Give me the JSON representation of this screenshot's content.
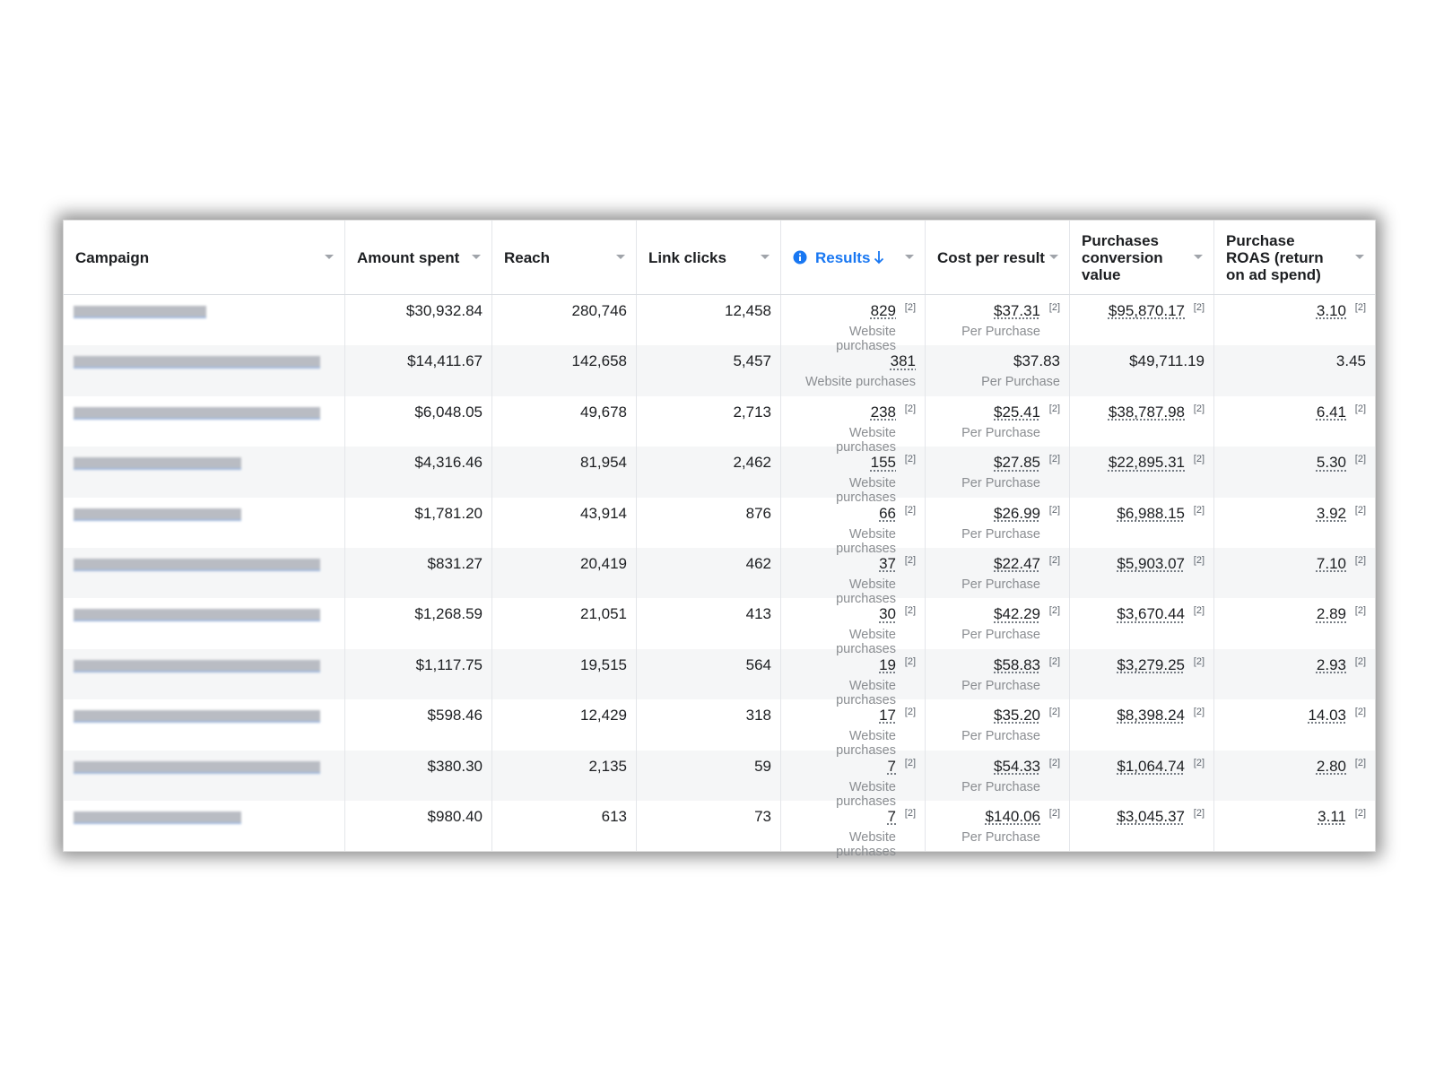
{
  "table": {
    "columns": [
      "Campaign",
      "Amount spent",
      "Reach",
      "Link clicks",
      "Results",
      "Cost per result",
      "Purchases conversion value",
      "Purchase ROAS (return on ad spend)"
    ],
    "rows": [
      {
        "amount_spent": "$30,932.84",
        "reach": "280,746",
        "link_clicks": "12,458",
        "results": {
          "value": "829",
          "note": "[2]",
          "label": "Website purchases"
        },
        "cost_per_result": {
          "value": "$37.31",
          "note": "[2]",
          "label": "Per Purchase"
        },
        "conversion_value": {
          "value": "$95,870.17",
          "note": "[2]"
        },
        "roas": {
          "value": "3.10",
          "note": "[2]"
        }
      },
      {
        "amount_spent": "$14,411.67",
        "reach": "142,658",
        "link_clicks": "5,457",
        "results": {
          "value": "381",
          "label": "Website purchases"
        },
        "cost_per_result": {
          "value": "$37.83",
          "label": "Per Purchase"
        },
        "conversion_value": {
          "value": "$49,711.19"
        },
        "roas": {
          "value": "3.45"
        }
      },
      {
        "amount_spent": "$6,048.05",
        "reach": "49,678",
        "link_clicks": "2,713",
        "results": {
          "value": "238",
          "note": "[2]",
          "label": "Website purchases"
        },
        "cost_per_result": {
          "value": "$25.41",
          "note": "[2]",
          "label": "Per Purchase"
        },
        "conversion_value": {
          "value": "$38,787.98",
          "note": "[2]"
        },
        "roas": {
          "value": "6.41",
          "note": "[2]"
        }
      },
      {
        "amount_spent": "$4,316.46",
        "reach": "81,954",
        "link_clicks": "2,462",
        "results": {
          "value": "155",
          "note": "[2]",
          "label": "Website purchases"
        },
        "cost_per_result": {
          "value": "$27.85",
          "note": "[2]",
          "label": "Per Purchase"
        },
        "conversion_value": {
          "value": "$22,895.31",
          "note": "[2]"
        },
        "roas": {
          "value": "5.30",
          "note": "[2]"
        }
      },
      {
        "amount_spent": "$1,781.20",
        "reach": "43,914",
        "link_clicks": "876",
        "results": {
          "value": "66",
          "note": "[2]",
          "label": "Website purchases"
        },
        "cost_per_result": {
          "value": "$26.99",
          "note": "[2]",
          "label": "Per Purchase"
        },
        "conversion_value": {
          "value": "$6,988.15",
          "note": "[2]"
        },
        "roas": {
          "value": "3.92",
          "note": "[2]"
        }
      },
      {
        "amount_spent": "$831.27",
        "reach": "20,419",
        "link_clicks": "462",
        "results": {
          "value": "37",
          "note": "[2]",
          "label": "Website purchases"
        },
        "cost_per_result": {
          "value": "$22.47",
          "note": "[2]",
          "label": "Per Purchase"
        },
        "conversion_value": {
          "value": "$5,903.07",
          "note": "[2]"
        },
        "roas": {
          "value": "7.10",
          "note": "[2]"
        }
      },
      {
        "amount_spent": "$1,268.59",
        "reach": "21,051",
        "link_clicks": "413",
        "results": {
          "value": "30",
          "note": "[2]",
          "label": "Website purchases"
        },
        "cost_per_result": {
          "value": "$42.29",
          "note": "[2]",
          "label": "Per Purchase"
        },
        "conversion_value": {
          "value": "$3,670.44",
          "note": "[2]"
        },
        "roas": {
          "value": "2.89",
          "note": "[2]"
        }
      },
      {
        "amount_spent": "$1,117.75",
        "reach": "19,515",
        "link_clicks": "564",
        "results": {
          "value": "19",
          "note": "[2]",
          "label": "Website purchases"
        },
        "cost_per_result": {
          "value": "$58.83",
          "note": "[2]",
          "label": "Per Purchase"
        },
        "conversion_value": {
          "value": "$3,279.25",
          "note": "[2]"
        },
        "roas": {
          "value": "2.93",
          "note": "[2]"
        }
      },
      {
        "amount_spent": "$598.46",
        "reach": "12,429",
        "link_clicks": "318",
        "results": {
          "value": "17",
          "note": "[2]",
          "label": "Website purchases"
        },
        "cost_per_result": {
          "value": "$35.20",
          "note": "[2]",
          "label": "Per Purchase"
        },
        "conversion_value": {
          "value": "$8,398.24",
          "note": "[2]"
        },
        "roas": {
          "value": "14.03",
          "note": "[2]"
        }
      },
      {
        "amount_spent": "$380.30",
        "reach": "2,135",
        "link_clicks": "59",
        "results": {
          "value": "7",
          "note": "[2]",
          "label": "Website purchases"
        },
        "cost_per_result": {
          "value": "$54.33",
          "note": "[2]",
          "label": "Per Purchase"
        },
        "conversion_value": {
          "value": "$1,064.74",
          "note": "[2]"
        },
        "roas": {
          "value": "2.80",
          "note": "[2]"
        }
      },
      {
        "amount_spent": "$980.40",
        "reach": "613",
        "link_clicks": "73",
        "results": {
          "value": "7",
          "note": "[2]",
          "label": "Website purchases"
        },
        "cost_per_result": {
          "value": "$140.06",
          "note": "[2]",
          "label": "Per Purchase"
        },
        "conversion_value": {
          "value": "$3,045.37",
          "note": "[2]"
        },
        "roas": {
          "value": "3.11",
          "note": "[2]"
        }
      }
    ]
  }
}
